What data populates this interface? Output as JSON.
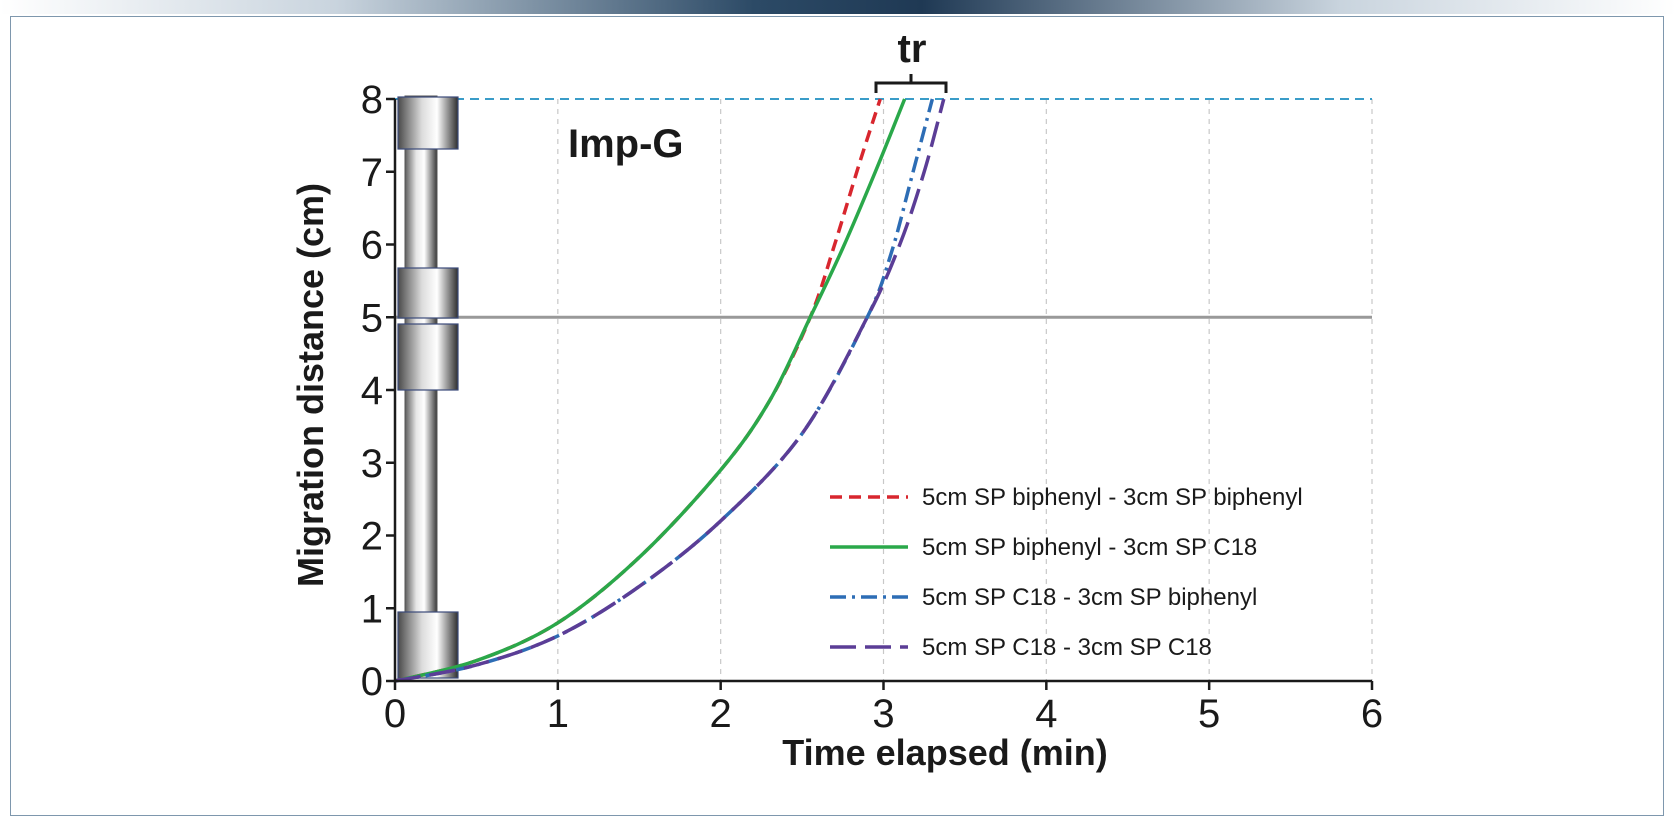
{
  "chart_data": {
    "type": "line",
    "xlabel": "Time elapsed (min)",
    "ylabel": "Migration distance (cm)",
    "xlim": [
      0,
      6
    ],
    "ylim": [
      0,
      8
    ],
    "x_ticks": [
      "0",
      "1",
      "2",
      "3",
      "4",
      "5",
      "6"
    ],
    "y_ticks": [
      "0",
      "1",
      "2",
      "3",
      "4",
      "5",
      "6",
      "7",
      "8"
    ],
    "grid": "vertical dashed",
    "legend_position": "bottom-right",
    "annotations": {
      "panel_label": "Imp-G",
      "bracket_label": "tr"
    },
    "reference_lines": [
      {
        "name": "column end",
        "y": 8,
        "style": "dashed",
        "color": "#3a9cc8"
      },
      {
        "name": "column junction",
        "y": 5,
        "style": "solid",
        "color": "#999999"
      }
    ],
    "series": [
      {
        "name": "5cm SP biphenyl - 3cm SP biphenyl",
        "color": "#d8262e",
        "dash": "dashed",
        "x": [
          0,
          0.5,
          1.0,
          1.5,
          2.0,
          2.3,
          2.55,
          2.7,
          2.85,
          2.98
        ],
        "y": [
          0,
          0.28,
          0.8,
          1.7,
          2.9,
          3.85,
          5.0,
          6.0,
          7.1,
          8.0
        ]
      },
      {
        "name": "5cm SP biphenyl - 3cm SP C18",
        "color": "#2aa84a",
        "dash": "solid",
        "x": [
          0,
          0.5,
          1.0,
          1.5,
          2.0,
          2.3,
          2.55,
          2.75,
          2.95,
          3.13
        ],
        "y": [
          0,
          0.28,
          0.8,
          1.7,
          2.9,
          3.85,
          5.0,
          5.95,
          7.0,
          8.0
        ]
      },
      {
        "name": "5cm SP C18 - 3cm SP biphenyl",
        "color": "#2d6db5",
        "dash": "dashdot",
        "x": [
          0,
          0.5,
          1.0,
          1.5,
          2.0,
          2.5,
          2.9,
          3.05,
          3.17,
          3.3
        ],
        "y": [
          0,
          0.22,
          0.62,
          1.3,
          2.2,
          3.4,
          5.0,
          5.9,
          6.9,
          8.0
        ]
      },
      {
        "name": "5cm SP C18 - 3cm SP C18",
        "color": "#5b3d96",
        "dash": "longdash",
        "x": [
          0,
          0.5,
          1.0,
          1.5,
          2.0,
          2.5,
          2.9,
          3.1,
          3.25,
          3.37
        ],
        "y": [
          0,
          0.22,
          0.62,
          1.3,
          2.2,
          3.4,
          5.0,
          6.0,
          7.0,
          8.0
        ]
      }
    ]
  }
}
